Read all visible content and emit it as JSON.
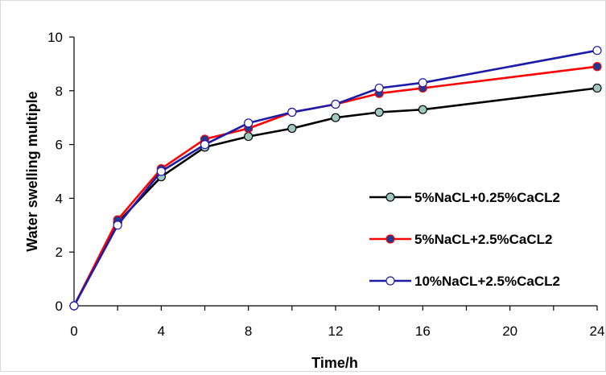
{
  "chart_data": {
    "type": "line",
    "title": "",
    "xlabel": "Time/h",
    "ylabel": "Water swelling multiple",
    "ylim": [
      0,
      10
    ],
    "grid": false,
    "legend_position": "right",
    "x_tick_labels": [
      "0",
      "4",
      "8",
      "12",
      "16",
      "20",
      "24"
    ],
    "y_tick_labels": [
      "0",
      "2",
      "4",
      "6",
      "8",
      "10"
    ],
    "categories": [
      "0",
      "2",
      "4",
      "6",
      "8",
      "10",
      "12",
      "14",
      "16",
      "24"
    ],
    "series": [
      {
        "name": "5%NaCL+0.25%CaCL2",
        "line_color": "#000000",
        "marker_fill": "#9fc8c0",
        "values": [
          0,
          3.1,
          4.8,
          5.9,
          6.3,
          6.6,
          7.0,
          7.2,
          7.3,
          8.1
        ]
      },
      {
        "name": "5%NaCL+2.5%CaCL2",
        "line_color": "#ff0000",
        "marker_fill": "#1f3a93",
        "values": [
          0,
          3.2,
          5.1,
          6.2,
          6.6,
          7.2,
          7.5,
          7.9,
          8.1,
          8.9
        ]
      },
      {
        "name": "10%NaCL+2.5%CaCL2",
        "line_color": "#1c1ca8",
        "marker_fill": "#ffffff",
        "values": [
          0,
          3.0,
          5.0,
          6.0,
          6.8,
          7.2,
          7.5,
          8.1,
          8.3,
          9.5
        ]
      }
    ]
  }
}
